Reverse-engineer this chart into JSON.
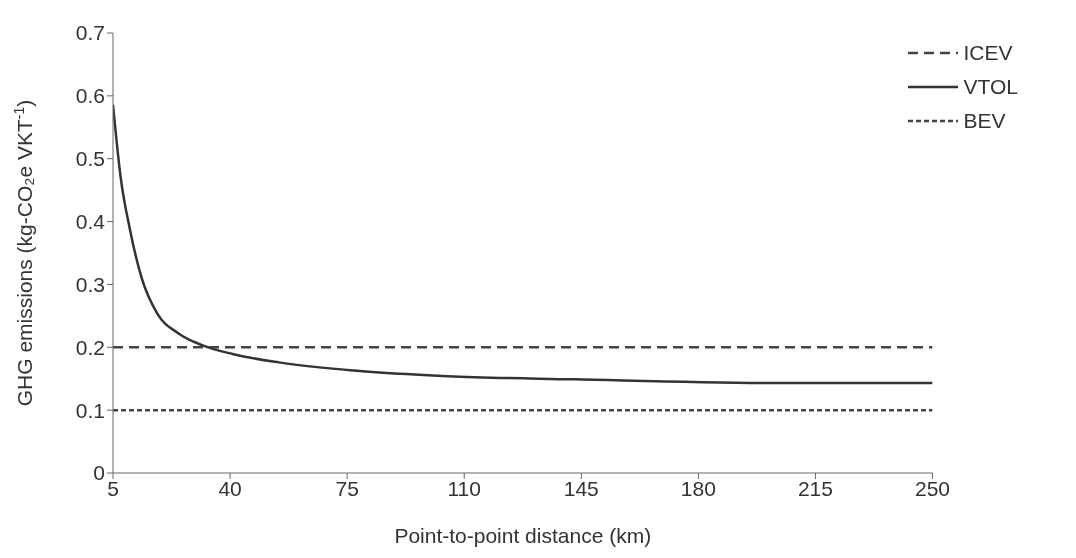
{
  "chart_data": {
    "type": "line",
    "xlabel": "Point-to-point distance (km)",
    "ylabel": "GHG emissions (kg-CO₂e VKT$^{-1}$)",
    "xlim": [
      5,
      250
    ],
    "xticks": [
      5,
      40,
      75,
      110,
      145,
      180,
      215,
      250
    ],
    "ylim": [
      0,
      0.7
    ],
    "yticks": [
      0,
      0.1,
      0.2,
      0.3,
      0.4,
      0.5,
      0.6,
      0.7
    ],
    "grid": false,
    "legend": "top right",
    "marker": "none",
    "series": [
      {
        "name": "ICEV",
        "color": "#444444",
        "line_style": "dashed",
        "x": [
          5,
          250
        ],
        "values": [
          0.2,
          0.2
        ]
      },
      {
        "name": "VTOL",
        "color": "#333333",
        "line_style": "solid",
        "x": [
          5,
          7.3,
          10,
          13.7,
          18.2,
          24.6,
          31.8,
          41,
          54.6,
          77,
          105,
          143,
          206,
          250
        ],
        "values": [
          0.586,
          0.47,
          0.389,
          0.308,
          0.254,
          0.222,
          0.203,
          0.189,
          0.176,
          0.163,
          0.154,
          0.149,
          0.143,
          0.143
        ]
      },
      {
        "name": "BEV",
        "color": "#444444",
        "line_style": "dotted",
        "x": [
          5,
          250
        ],
        "values": [
          0.1,
          0.1
        ]
      }
    ]
  }
}
